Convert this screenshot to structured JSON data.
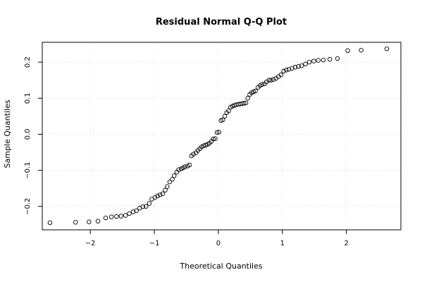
{
  "chart_data": {
    "type": "scatter",
    "title": "Residual Normal Q-Q Plot",
    "xlabel": "Theoretical Quantiles",
    "ylabel": "Sample Quantiles",
    "xlim": [
      -2.75,
      2.85
    ],
    "ylim": [
      -0.265,
      0.255
    ],
    "grid": true,
    "x_ticks": [
      -2,
      -1,
      0,
      1,
      2
    ],
    "x_tick_labels": [
      "−2",
      "−1",
      "0",
      "1",
      "2"
    ],
    "y_ticks": [
      -0.2,
      -0.1,
      0.0,
      0.1,
      0.2
    ],
    "y_tick_labels": [
      "−0.2",
      "−0.1",
      "0.0",
      "0.1",
      "0.2"
    ],
    "x": [
      -2.63,
      -2.23,
      -2.02,
      -1.88,
      -1.76,
      -1.67,
      -1.59,
      -1.52,
      -1.45,
      -1.39,
      -1.33,
      -1.28,
      -1.23,
      -1.18,
      -1.13,
      -1.08,
      -1.04,
      -0.99,
      -0.95,
      -0.91,
      -0.87,
      -0.83,
      -0.8,
      -0.76,
      -0.72,
      -0.69,
      -0.65,
      -0.62,
      -0.58,
      -0.55,
      -0.52,
      -0.48,
      -0.45,
      -0.42,
      -0.39,
      -0.35,
      -0.32,
      -0.29,
      -0.26,
      -0.23,
      -0.2,
      -0.17,
      -0.14,
      -0.11,
      -0.08,
      -0.05,
      -0.02,
      0.01,
      0.04,
      0.07,
      0.1,
      0.13,
      0.16,
      0.19,
      0.22,
      0.25,
      0.28,
      0.31,
      0.34,
      0.37,
      0.4,
      0.43,
      0.46,
      0.49,
      0.52,
      0.55,
      0.58,
      0.62,
      0.65,
      0.68,
      0.72,
      0.75,
      0.79,
      0.82,
      0.86,
      0.9,
      0.94,
      0.98,
      1.02,
      1.06,
      1.1,
      1.15,
      1.2,
      1.25,
      1.3,
      1.36,
      1.42,
      1.49,
      1.56,
      1.64,
      1.74,
      1.86,
      2.02,
      2.23,
      2.63
    ],
    "y": [
      -0.245,
      -0.244,
      -0.243,
      -0.241,
      -0.232,
      -0.229,
      -0.228,
      -0.227,
      -0.225,
      -0.22,
      -0.215,
      -0.212,
      -0.205,
      -0.201,
      -0.2,
      -0.192,
      -0.18,
      -0.175,
      -0.171,
      -0.168,
      -0.165,
      -0.155,
      -0.145,
      -0.132,
      -0.125,
      -0.115,
      -0.105,
      -0.098,
      -0.096,
      -0.093,
      -0.09,
      -0.088,
      -0.085,
      -0.06,
      -0.055,
      -0.051,
      -0.045,
      -0.04,
      -0.035,
      -0.032,
      -0.03,
      -0.028,
      -0.025,
      -0.02,
      -0.013,
      -0.012,
      0.005,
      0.006,
      0.038,
      0.04,
      0.05,
      0.06,
      0.065,
      0.075,
      0.078,
      0.08,
      0.082,
      0.083,
      0.084,
      0.085,
      0.086,
      0.087,
      0.1,
      0.11,
      0.115,
      0.118,
      0.12,
      0.13,
      0.135,
      0.138,
      0.14,
      0.145,
      0.15,
      0.15,
      0.152,
      0.155,
      0.16,
      0.165,
      0.175,
      0.178,
      0.18,
      0.183,
      0.186,
      0.188,
      0.19,
      0.195,
      0.2,
      0.203,
      0.205,
      0.206,
      0.208,
      0.21,
      0.232,
      0.233,
      0.237
    ]
  }
}
